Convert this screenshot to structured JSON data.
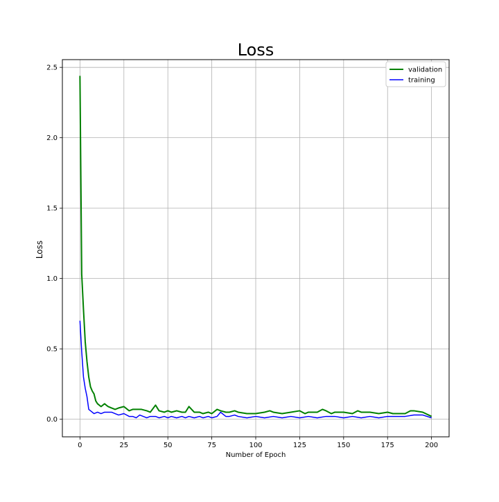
{
  "chart_data": {
    "type": "line",
    "title": "Loss",
    "xlabel": "Number of Epoch",
    "ylabel": "Loss",
    "xlim": [
      -10,
      210
    ],
    "ylim": [
      -0.125,
      2.555
    ],
    "xticks": [
      0,
      25,
      50,
      75,
      100,
      125,
      150,
      175,
      200
    ],
    "xtick_labels": [
      "0",
      "25",
      "50",
      "75",
      "100",
      "125",
      "150",
      "175",
      "200"
    ],
    "yticks": [
      0.0,
      0.5,
      1.0,
      1.5,
      2.0,
      2.5
    ],
    "ytick_labels": [
      "0.0",
      "0.5",
      "1.0",
      "1.5",
      "2.0",
      "2.5"
    ],
    "grid": true,
    "legend_position": "top-right",
    "series": [
      {
        "name": "validation",
        "color": "#008000",
        "x": [
          0,
          1,
          2,
          3,
          4,
          5,
          6,
          7,
          8,
          9,
          10,
          12,
          14,
          16,
          18,
          20,
          22,
          25,
          28,
          30,
          32,
          35,
          38,
          40,
          43,
          45,
          48,
          50,
          52,
          55,
          58,
          60,
          62,
          65,
          68,
          70,
          73,
          75,
          78,
          80,
          83,
          85,
          88,
          90,
          95,
          100,
          105,
          108,
          110,
          115,
          120,
          125,
          128,
          130,
          135,
          138,
          140,
          143,
          145,
          150,
          155,
          158,
          160,
          165,
          170,
          175,
          178,
          180,
          185,
          188,
          190,
          195,
          200
        ],
        "y": [
          2.44,
          1.03,
          0.78,
          0.55,
          0.41,
          0.3,
          0.23,
          0.2,
          0.18,
          0.13,
          0.11,
          0.09,
          0.11,
          0.09,
          0.08,
          0.07,
          0.08,
          0.09,
          0.06,
          0.07,
          0.07,
          0.07,
          0.06,
          0.05,
          0.1,
          0.06,
          0.05,
          0.06,
          0.05,
          0.06,
          0.05,
          0.05,
          0.09,
          0.05,
          0.05,
          0.04,
          0.05,
          0.04,
          0.07,
          0.06,
          0.05,
          0.05,
          0.06,
          0.05,
          0.04,
          0.04,
          0.05,
          0.06,
          0.05,
          0.04,
          0.05,
          0.06,
          0.04,
          0.05,
          0.05,
          0.07,
          0.06,
          0.04,
          0.05,
          0.05,
          0.04,
          0.06,
          0.05,
          0.05,
          0.04,
          0.05,
          0.04,
          0.04,
          0.04,
          0.06,
          0.06,
          0.05,
          0.02
        ]
      },
      {
        "name": "training",
        "color": "#0000ff",
        "x": [
          0,
          1,
          2,
          3,
          4,
          5,
          6,
          8,
          10,
          12,
          14,
          16,
          18,
          20,
          22,
          25,
          28,
          30,
          32,
          34,
          36,
          38,
          40,
          43,
          45,
          48,
          50,
          52,
          55,
          58,
          60,
          62,
          65,
          68,
          70,
          73,
          75,
          78,
          80,
          83,
          85,
          88,
          90,
          95,
          100,
          105,
          110,
          115,
          120,
          125,
          130,
          135,
          140,
          145,
          150,
          155,
          160,
          165,
          170,
          175,
          180,
          185,
          190,
          195,
          200
        ],
        "y": [
          0.7,
          0.48,
          0.3,
          0.22,
          0.16,
          0.07,
          0.06,
          0.04,
          0.05,
          0.04,
          0.05,
          0.05,
          0.05,
          0.04,
          0.03,
          0.04,
          0.02,
          0.02,
          0.01,
          0.03,
          0.02,
          0.01,
          0.02,
          0.02,
          0.01,
          0.02,
          0.01,
          0.02,
          0.01,
          0.02,
          0.01,
          0.02,
          0.01,
          0.02,
          0.01,
          0.02,
          0.01,
          0.02,
          0.05,
          0.02,
          0.02,
          0.03,
          0.02,
          0.01,
          0.02,
          0.01,
          0.02,
          0.01,
          0.02,
          0.01,
          0.02,
          0.01,
          0.02,
          0.02,
          0.01,
          0.02,
          0.01,
          0.02,
          0.01,
          0.02,
          0.02,
          0.02,
          0.03,
          0.03,
          0.01
        ]
      }
    ]
  }
}
